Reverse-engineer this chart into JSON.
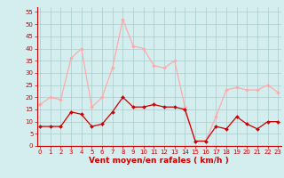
{
  "x": [
    0,
    1,
    2,
    3,
    4,
    5,
    6,
    7,
    8,
    9,
    10,
    11,
    12,
    13,
    14,
    15,
    16,
    17,
    18,
    19,
    20,
    21,
    22,
    23
  ],
  "wind_avg": [
    8,
    8,
    8,
    14,
    13,
    8,
    9,
    14,
    20,
    16,
    16,
    17,
    16,
    16,
    15,
    2,
    2,
    8,
    7,
    12,
    9,
    7,
    10,
    10
  ],
  "wind_gust": [
    17,
    20,
    19,
    36,
    40,
    16,
    20,
    32,
    52,
    41,
    40,
    33,
    32,
    35,
    16,
    2,
    2,
    12,
    23,
    24,
    23,
    23,
    25,
    22
  ],
  "avg_color": "#cc0000",
  "gust_color": "#ffaaaa",
  "bg_color": "#d4eef0",
  "grid_color": "#aacccc",
  "xlabel": "Vent moyen/en rafales ( km/h )",
  "xlabel_color": "#cc0000",
  "yticks": [
    0,
    5,
    10,
    15,
    20,
    25,
    30,
    35,
    40,
    45,
    50,
    55
  ],
  "xticks": [
    0,
    1,
    2,
    3,
    4,
    5,
    6,
    7,
    8,
    9,
    10,
    11,
    12,
    13,
    14,
    15,
    16,
    17,
    18,
    19,
    20,
    21,
    22,
    23
  ],
  "ylim": [
    0,
    57
  ],
  "xlim": [
    -0.3,
    23.3
  ],
  "tick_fontsize": 5.0,
  "xlabel_fontsize": 6.5,
  "marker_size": 2.0
}
